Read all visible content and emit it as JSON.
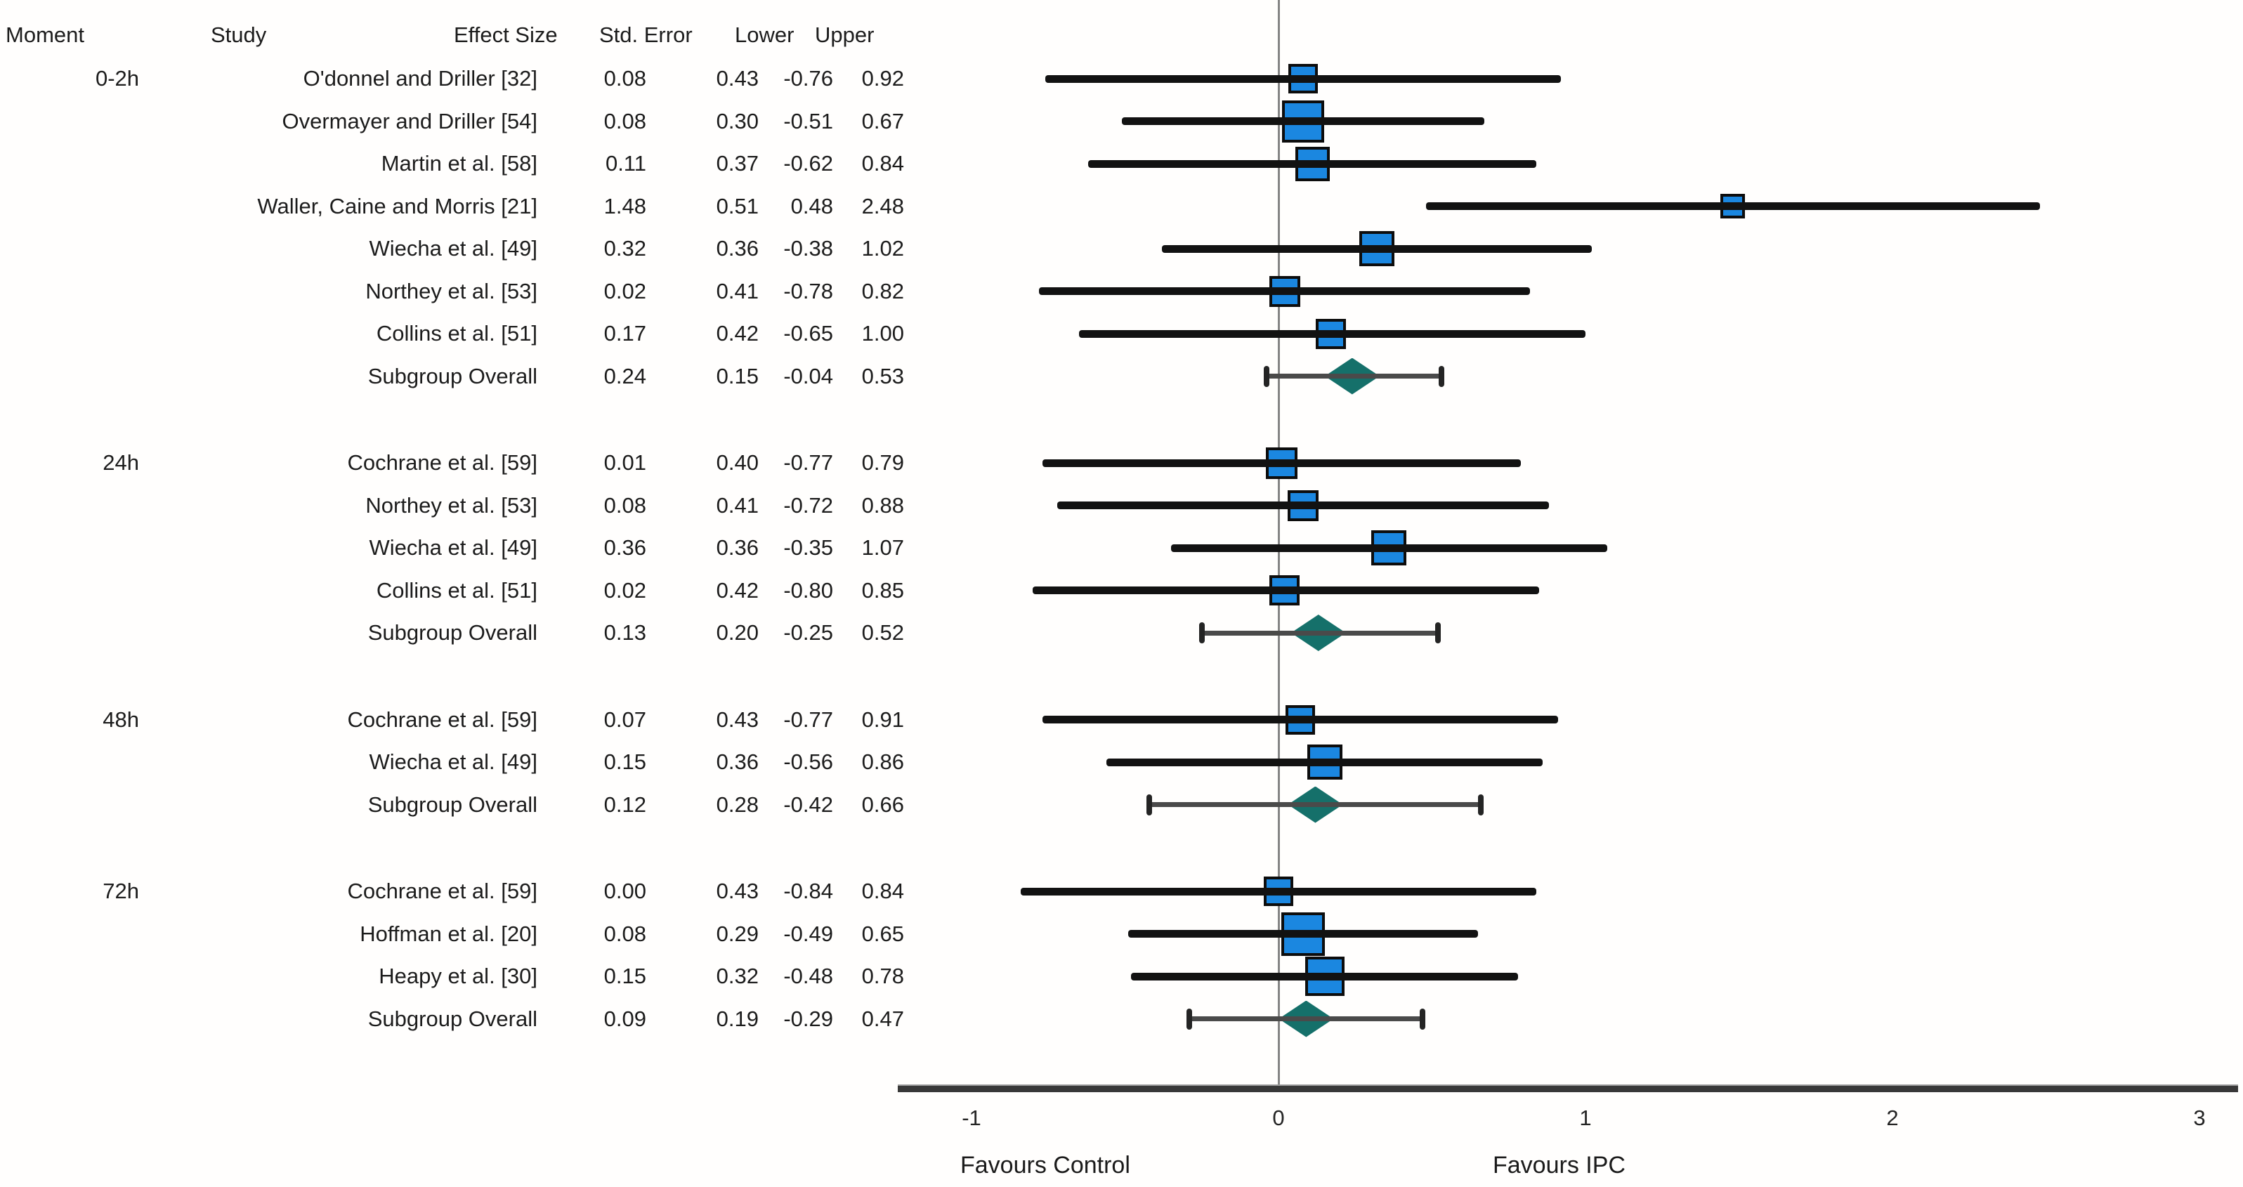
{
  "table": {
    "headers": {
      "moment": "Moment",
      "study": "Study",
      "effect_size": "Effect Size",
      "std_error": "Std. Error",
      "lower": "Lower",
      "upper": "Upper"
    }
  },
  "chart_data": {
    "type": "forest",
    "x_axis": {
      "ticks": [
        "-1",
        "0",
        "1",
        "2",
        "3"
      ],
      "min": -1.24,
      "max": 3.13,
      "zero_reference_line": 0,
      "grid": false
    },
    "footer_labels": {
      "left": "Favours Control",
      "right": "Favours IPC"
    },
    "groups": [
      {
        "moment": "0-2h",
        "studies": [
          {
            "study": "O'donnel and Driller [32]",
            "effect_size": "0.08",
            "std_error": "0.43",
            "lower": "-0.76",
            "upper": "0.92",
            "overall": false
          },
          {
            "study": "Overmayer and Driller [54]",
            "effect_size": "0.08",
            "std_error": "0.30",
            "lower": "-0.51",
            "upper": "0.67",
            "overall": false
          },
          {
            "study": "Martin et al. [58]",
            "effect_size": "0.11",
            "std_error": "0.37",
            "lower": "-0.62",
            "upper": "0.84",
            "overall": false
          },
          {
            "study": "Waller, Caine and Morris [21]",
            "effect_size": "1.48",
            "std_error": "0.51",
            "lower": "0.48",
            "upper": "2.48",
            "overall": false
          },
          {
            "study": "Wiecha et al. [49]",
            "effect_size": "0.32",
            "std_error": "0.36",
            "lower": "-0.38",
            "upper": "1.02",
            "overall": false
          },
          {
            "study": "Northey et al. [53]",
            "effect_size": "0.02",
            "std_error": "0.41",
            "lower": "-0.78",
            "upper": "0.82",
            "overall": false
          },
          {
            "study": "Collins et al. [51]",
            "effect_size": "0.17",
            "std_error": "0.42",
            "lower": "-0.65",
            "upper": "1.00",
            "overall": false
          },
          {
            "study": "Subgroup Overall",
            "effect_size": "0.24",
            "std_error": "0.15",
            "lower": "-0.04",
            "upper": "0.53",
            "overall": true
          }
        ]
      },
      {
        "moment": "24h",
        "studies": [
          {
            "study": "Cochrane et al. [59]",
            "effect_size": "0.01",
            "std_error": "0.40",
            "lower": "-0.77",
            "upper": "0.79",
            "overall": false
          },
          {
            "study": "Northey et al. [53]",
            "effect_size": "0.08",
            "std_error": "0.41",
            "lower": "-0.72",
            "upper": "0.88",
            "overall": false
          },
          {
            "study": "Wiecha et al. [49]",
            "effect_size": "0.36",
            "std_error": "0.36",
            "lower": "-0.35",
            "upper": "1.07",
            "overall": false
          },
          {
            "study": "Collins et al. [51]",
            "effect_size": "0.02",
            "std_error": "0.42",
            "lower": "-0.80",
            "upper": "0.85",
            "overall": false
          },
          {
            "study": "Subgroup Overall",
            "effect_size": "0.13",
            "std_error": "0.20",
            "lower": "-0.25",
            "upper": "0.52",
            "overall": true
          }
        ]
      },
      {
        "moment": "48h",
        "studies": [
          {
            "study": "Cochrane et al. [59]",
            "effect_size": "0.07",
            "std_error": "0.43",
            "lower": "-0.77",
            "upper": "0.91",
            "overall": false
          },
          {
            "study": "Wiecha et al. [49]",
            "effect_size": "0.15",
            "std_error": "0.36",
            "lower": "-0.56",
            "upper": "0.86",
            "overall": false
          },
          {
            "study": "Subgroup Overall",
            "effect_size": "0.12",
            "std_error": "0.28",
            "lower": "-0.42",
            "upper": "0.66",
            "overall": true
          }
        ]
      },
      {
        "moment": "72h",
        "studies": [
          {
            "study": "Cochrane et al. [59]",
            "effect_size": "0.00",
            "std_error": "0.43",
            "lower": "-0.84",
            "upper": "0.84",
            "overall": false
          },
          {
            "study": "Hoffman et al. [20]",
            "effect_size": "0.08",
            "std_error": "0.29",
            "lower": "-0.49",
            "upper": "0.65",
            "overall": false
          },
          {
            "study": "Heapy et al. [30]",
            "effect_size": "0.15",
            "std_error": "0.32",
            "lower": "-0.48",
            "upper": "0.78",
            "overall": false
          },
          {
            "study": "Subgroup Overall",
            "effect_size": "0.09",
            "std_error": "0.19",
            "lower": "-0.29",
            "upper": "0.47",
            "overall": true
          }
        ]
      }
    ],
    "colors": {
      "study_marker_fill": "#1b87e0",
      "study_marker_border": "#0d0d0d",
      "overall_diamond_fill": "#15706a",
      "ci_line": "#121212",
      "overall_ci_line": "#4a4a4a",
      "zero_line": "#858585",
      "axis_line": "#383838"
    }
  }
}
